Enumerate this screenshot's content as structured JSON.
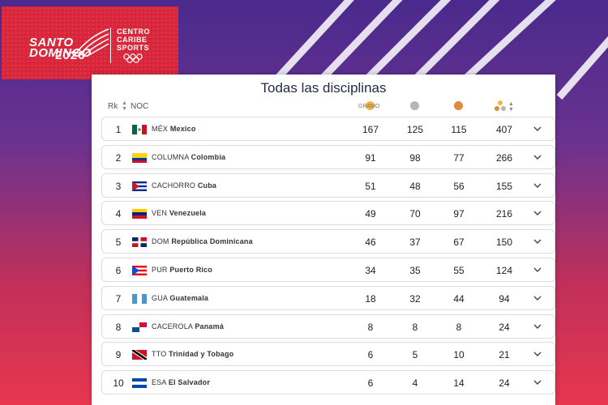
{
  "logo": {
    "city_line1": "SANTO",
    "city_line2": "DOMINGO",
    "year": "2026",
    "org_line1": "CENTRO",
    "org_line2": "CARIBE",
    "org_line3": "SPORTS"
  },
  "panel": {
    "title": "Todas las disciplinas"
  },
  "header": {
    "rank": "Rk",
    "noc": "NOC",
    "gold": "GRAMO",
    "silver_icon": "silver-medal-icon",
    "bronze_icon": "bronze-medal-icon",
    "total_icon": "medals-total-icon"
  },
  "rows": [
    {
      "rank": "1",
      "code": "MÉX",
      "name": "Mexico",
      "gold": "167",
      "silver": "125",
      "bronze": "115",
      "total": "407"
    },
    {
      "rank": "2",
      "code": "COLUMNA",
      "name": "Colombia",
      "gold": "91",
      "silver": "98",
      "bronze": "77",
      "total": "266"
    },
    {
      "rank": "3",
      "code": "CACHORRO",
      "name": "Cuba",
      "gold": "51",
      "silver": "48",
      "bronze": "56",
      "total": "155"
    },
    {
      "rank": "4",
      "code": "VEN",
      "name": "Venezuela",
      "gold": "49",
      "silver": "70",
      "bronze": "97",
      "total": "216"
    },
    {
      "rank": "5",
      "code": "DOM",
      "name": "República Dominicana",
      "gold": "46",
      "silver": "37",
      "bronze": "67",
      "total": "150"
    },
    {
      "rank": "6",
      "code": "PUR",
      "name": "Puerto Rico",
      "gold": "34",
      "silver": "35",
      "bronze": "55",
      "total": "124"
    },
    {
      "rank": "7",
      "code": "GUA",
      "name": "Guatemala",
      "gold": "18",
      "silver": "32",
      "bronze": "44",
      "total": "94"
    },
    {
      "rank": "8",
      "code": "CACEROLA",
      "name": "Panamá",
      "gold": "8",
      "silver": "8",
      "bronze": "8",
      "total": "24"
    },
    {
      "rank": "9",
      "code": "TTO",
      "name": "Trinidad y Tobago",
      "gold": "6",
      "silver": "5",
      "bronze": "10",
      "total": "21"
    },
    {
      "rank": "10",
      "code": "ESA",
      "name": "El Salvador",
      "gold": "6",
      "silver": "4",
      "bronze": "14",
      "total": "24"
    }
  ]
}
